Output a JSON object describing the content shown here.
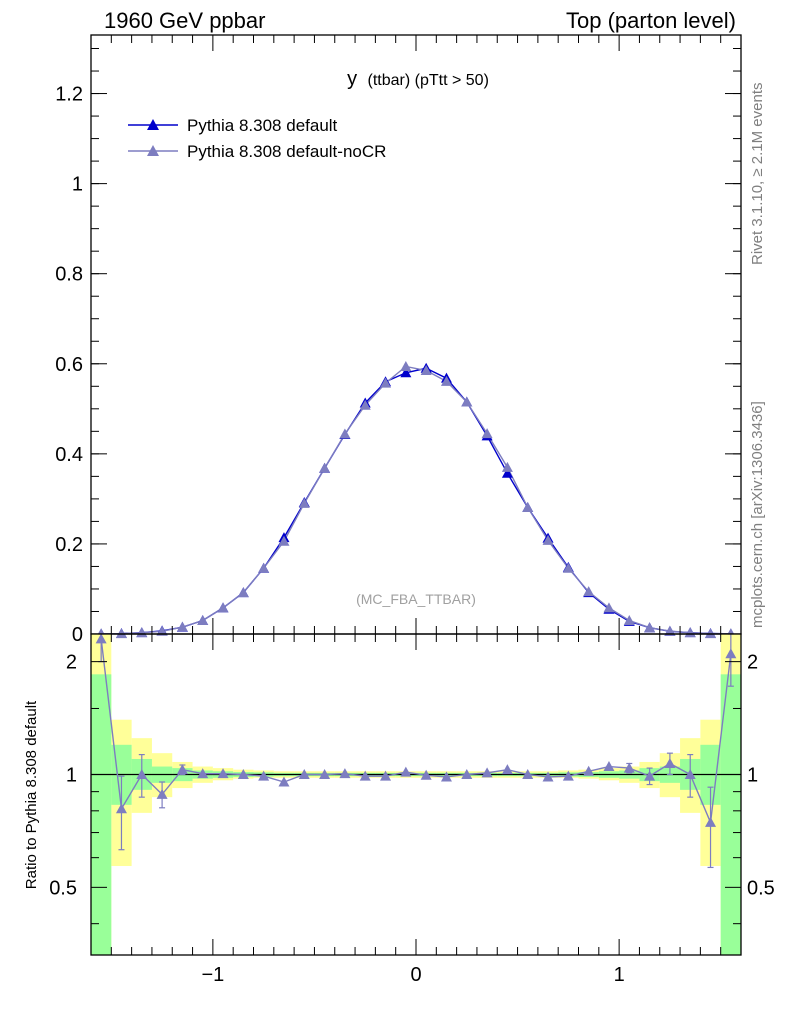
{
  "header": {
    "left": "1960 GeV ppbar",
    "right": "Top (parton level)"
  },
  "side_labels": {
    "top": "Rivet 3.1.10, ≥ 2.1M events",
    "bottom": "mcplots.cern.ch [arXiv:1306.3436]"
  },
  "chart_data": [
    {
      "type": "line",
      "title_main": "y",
      "title_sub": "(ttbar)  (pTtt > 50)",
      "watermark": "(MC_FBA_TTBAR)",
      "xlim": [
        -1.6,
        1.6
      ],
      "ylim": [
        0,
        1.33
      ],
      "yticks": [
        0,
        0.2,
        0.4,
        0.6,
        0.8,
        1,
        1.2
      ],
      "ytick_labels": [
        "0",
        "0.2",
        "0.4",
        "0.6",
        "0.8",
        "1",
        "1.2"
      ],
      "legend_position": "top-left",
      "x": [
        -1.55,
        -1.45,
        -1.35,
        -1.25,
        -1.15,
        -1.05,
        -0.95,
        -0.85,
        -0.75,
        -0.65,
        -0.55,
        -0.45,
        -0.35,
        -0.25,
        -0.15,
        -0.05,
        0.05,
        0.15,
        0.25,
        0.35,
        0.45,
        0.55,
        0.65,
        0.75,
        0.85,
        0.95,
        1.05,
        1.15,
        1.25,
        1.35,
        1.45,
        1.55
      ],
      "series": [
        {
          "name": "Pythia 8.308 default",
          "color": "#0000cc",
          "values": [
            0.0003,
            0.001,
            0.003,
            0.007,
            0.015,
            0.03,
            0.058,
            0.092,
            0.146,
            0.214,
            0.292,
            0.368,
            0.443,
            0.513,
            0.56,
            0.58,
            0.59,
            0.568,
            0.515,
            0.44,
            0.357,
            0.281,
            0.213,
            0.148,
            0.092,
            0.055,
            0.028,
            0.014,
            0.006,
            0.003,
            0.0012,
            0.0003
          ]
        },
        {
          "name": "Pythia 8.308 default-noCR",
          "color": "#7d7dc0",
          "values": [
            0.0006,
            0.0008,
            0.003,
            0.006,
            0.0155,
            0.03,
            0.058,
            0.092,
            0.146,
            0.206,
            0.29,
            0.368,
            0.444,
            0.508,
            0.557,
            0.594,
            0.585,
            0.561,
            0.515,
            0.445,
            0.37,
            0.281,
            0.208,
            0.146,
            0.094,
            0.058,
            0.03,
            0.014,
            0.0065,
            0.003,
            0.0009,
            0.0007
          ]
        }
      ]
    },
    {
      "type": "line",
      "ylabel": "Ratio to Pythia 8.308 default",
      "xlim": [
        -1.6,
        1.6
      ],
      "ylim": [
        0.33,
        2.37
      ],
      "yscale": "log",
      "xticks": [
        -1,
        0,
        1
      ],
      "xtick_labels": [
        "−1",
        "0",
        "1"
      ],
      "yticks": [
        0.5,
        1,
        2
      ],
      "ytick_labels": [
        "0.5",
        "1",
        "2"
      ],
      "reference_line": 1,
      "band_edges": [
        -1.6,
        -1.5,
        -1.4,
        -1.3,
        -1.2,
        -1.1,
        -1.0,
        -0.9,
        -0.8,
        -0.7,
        -0.6,
        -0.5,
        -0.4,
        -0.3,
        -0.2,
        -0.1,
        0.0,
        0.1,
        0.2,
        0.3,
        0.4,
        0.5,
        0.6,
        0.7,
        0.8,
        0.9,
        1.0,
        1.1,
        1.2,
        1.3,
        1.4,
        1.5,
        1.6
      ],
      "band_green": [
        [
          0.33,
          1.85
        ],
        [
          0.83,
          1.2
        ],
        [
          0.91,
          1.1
        ],
        [
          0.95,
          1.05
        ],
        [
          0.96,
          1.04
        ],
        [
          0.975,
          1.025
        ],
        [
          0.98,
          1.02
        ],
        [
          0.985,
          1.015
        ],
        [
          0.987,
          1.013
        ],
        [
          0.99,
          1.01
        ],
        [
          0.99,
          1.01
        ],
        [
          0.99,
          1.01
        ],
        [
          0.99,
          1.01
        ],
        [
          0.99,
          1.01
        ],
        [
          0.99,
          1.01
        ],
        [
          0.99,
          1.01
        ],
        [
          0.99,
          1.01
        ],
        [
          0.99,
          1.01
        ],
        [
          0.99,
          1.01
        ],
        [
          0.99,
          1.01
        ],
        [
          0.99,
          1.01
        ],
        [
          0.99,
          1.01
        ],
        [
          0.99,
          1.01
        ],
        [
          0.987,
          1.013
        ],
        [
          0.985,
          1.015
        ],
        [
          0.98,
          1.02
        ],
        [
          0.975,
          1.025
        ],
        [
          0.96,
          1.04
        ],
        [
          0.95,
          1.05
        ],
        [
          0.91,
          1.1
        ],
        [
          0.83,
          1.2
        ],
        [
          0.33,
          1.85
        ]
      ],
      "band_yellow": [
        [
          0.33,
          2.37
        ],
        [
          0.57,
          1.4
        ],
        [
          0.79,
          1.25
        ],
        [
          0.87,
          1.14
        ],
        [
          0.92,
          1.08
        ],
        [
          0.95,
          1.05
        ],
        [
          0.965,
          1.04
        ],
        [
          0.975,
          1.03
        ],
        [
          0.98,
          1.025
        ],
        [
          0.98,
          1.02
        ],
        [
          0.98,
          1.02
        ],
        [
          0.98,
          1.02
        ],
        [
          0.98,
          1.02
        ],
        [
          0.98,
          1.02
        ],
        [
          0.98,
          1.02
        ],
        [
          0.98,
          1.02
        ],
        [
          0.98,
          1.02
        ],
        [
          0.98,
          1.02
        ],
        [
          0.98,
          1.02
        ],
        [
          0.98,
          1.02
        ],
        [
          0.98,
          1.02
        ],
        [
          0.98,
          1.02
        ],
        [
          0.98,
          1.02
        ],
        [
          0.98,
          1.025
        ],
        [
          0.975,
          1.03
        ],
        [
          0.965,
          1.04
        ],
        [
          0.95,
          1.05
        ],
        [
          0.92,
          1.08
        ],
        [
          0.87,
          1.14
        ],
        [
          0.79,
          1.25
        ],
        [
          0.57,
          1.4
        ],
        [
          0.33,
          2.37
        ]
      ],
      "series": [
        {
          "name": "Pythia 8.308 default-noCR",
          "color": "#7d7dc0",
          "values": [
            2.3,
            0.81,
            1.0,
            0.885,
            1.03,
            1.005,
            1.005,
            1.0,
            0.99,
            0.955,
            1.0,
            1.0,
            1.005,
            0.99,
            0.99,
            1.015,
            0.995,
            0.985,
            1.0,
            1.01,
            1.03,
            1.0,
            0.985,
            0.99,
            1.02,
            1.05,
            1.04,
            0.99,
            1.07,
            1.0,
            0.745,
            2.1
          ],
          "err": [
            0.3,
            0.18,
            0.13,
            0.07,
            0.03,
            0.02,
            0.015,
            0.01,
            0.01,
            0.01,
            0.01,
            0.01,
            0.01,
            0.01,
            0.01,
            0.01,
            0.01,
            0.01,
            0.01,
            0.01,
            0.01,
            0.01,
            0.01,
            0.01,
            0.01,
            0.015,
            0.03,
            0.05,
            0.07,
            0.13,
            0.18,
            0.38
          ]
        }
      ]
    }
  ]
}
